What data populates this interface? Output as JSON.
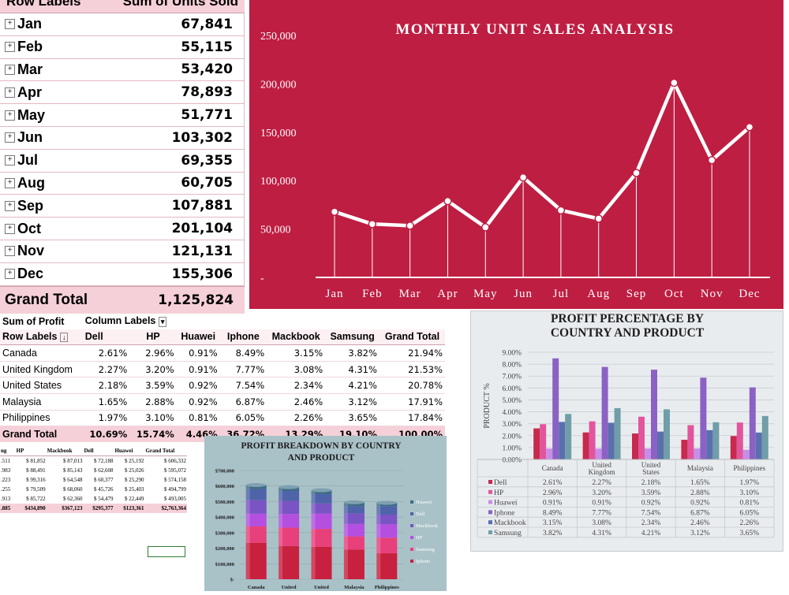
{
  "pivot_units": {
    "header_row_labels": "Row Labels",
    "header_value": "Sum of Units Sold",
    "rows": [
      {
        "label": "Jan",
        "value": "67,841"
      },
      {
        "label": "Feb",
        "value": "55,115"
      },
      {
        "label": "Mar",
        "value": "53,420"
      },
      {
        "label": "Apr",
        "value": "78,893"
      },
      {
        "label": "May",
        "value": "51,771"
      },
      {
        "label": "Jun",
        "value": "103,302"
      },
      {
        "label": "Jul",
        "value": "69,355"
      },
      {
        "label": "Aug",
        "value": "60,705"
      },
      {
        "label": "Sep",
        "value": "107,881"
      },
      {
        "label": "Oct",
        "value": "201,104"
      },
      {
        "label": "Nov",
        "value": "121,131"
      },
      {
        "label": "Dec",
        "value": "155,306"
      }
    ],
    "grand_total_label": "Grand Total",
    "grand_total_value": "1,125,824"
  },
  "pivot_profit_pct": {
    "value_field": "Sum of Profit",
    "column_labels": "Column Labels",
    "row_labels": "Row Labels",
    "columns": [
      "Dell",
      "HP",
      "Huawei",
      "Iphone",
      "Mackbook",
      "Samsung",
      "Grand Total"
    ],
    "rows": [
      {
        "label": "Canada",
        "values": [
          "2.61%",
          "2.96%",
          "0.91%",
          "8.49%",
          "3.15%",
          "3.82%",
          "21.94%"
        ]
      },
      {
        "label": "United Kingdom",
        "values": [
          "2.27%",
          "3.20%",
          "0.91%",
          "7.77%",
          "3.08%",
          "4.31%",
          "21.53%"
        ]
      },
      {
        "label": "United States",
        "values": [
          "2.18%",
          "3.59%",
          "0.92%",
          "7.54%",
          "2.34%",
          "4.21%",
          "20.78%"
        ]
      },
      {
        "label": "Malaysia",
        "values": [
          "1.65%",
          "2.88%",
          "0.92%",
          "6.87%",
          "2.46%",
          "3.12%",
          "17.91%"
        ]
      },
      {
        "label": "Philippines",
        "values": [
          "1.97%",
          "3.10%",
          "0.81%",
          "6.05%",
          "2.26%",
          "3.65%",
          "17.84%"
        ]
      }
    ],
    "grand_total_label": "Grand Total",
    "grand_total_values": [
      "10.69%",
      "15.74%",
      "4.46%",
      "36.72%",
      "13.29%",
      "19.10%",
      "100.00%"
    ]
  },
  "pivot_profit_abs": {
    "columns": [
      "ng",
      "HP",
      "Mackbook",
      "Dell",
      "Huawei",
      "Grand Total"
    ],
    "rows": [
      [
        ".511",
        "$ 81,852",
        "$ 87,013",
        "$ 72,188",
        "$ 25,192",
        "$ 606,332"
      ],
      [
        ".983",
        "$ 88,491",
        "$ 85,143",
        "$ 62,608",
        "$ 25,026",
        "$ 595,072"
      ],
      [
        ".223",
        "$ 99,316",
        "$ 64,548",
        "$ 60,377",
        "$ 25,290",
        "$ 574,158"
      ],
      [
        ".255",
        "$ 79,509",
        "$ 68,060",
        "$ 45,726",
        "$ 25,403",
        "$ 494,799"
      ],
      [
        ".913",
        "$ 85,722",
        "$ 62,360",
        "$ 54,479",
        "$ 22,449",
        "$ 493,005"
      ]
    ],
    "total": [
      ".885",
      "$434,890",
      "$367,123",
      "$295,377",
      "$123,361",
      "$2,763,364"
    ]
  },
  "chart_data": [
    {
      "type": "line",
      "title": "MONTHLY UNIT SALES ANALYSIS",
      "categories": [
        "Jan",
        "Feb",
        "Mar",
        "Apr",
        "May",
        "Jun",
        "Jul",
        "Aug",
        "Sep",
        "Oct",
        "Nov",
        "Dec"
      ],
      "values": [
        67841,
        55115,
        53420,
        78893,
        51771,
        103302,
        69355,
        60705,
        107881,
        201104,
        121131,
        155306
      ],
      "y_ticks": [
        "-",
        "50,000",
        "100,000",
        "150,000",
        "200,000",
        "250,000"
      ],
      "ylim": [
        0,
        250000
      ],
      "grid": false,
      "colors": {
        "background": "#be1e42",
        "line": "#ffffff"
      }
    },
    {
      "type": "bar",
      "title": "PROFIT PERCENTAGE BY COUNTRY AND PRODUCT",
      "ylabel": "PRODUCT %",
      "categories": [
        "Canada",
        "United Kingdom",
        "United States",
        "Malaysia",
        "Philippines"
      ],
      "y_ticks": [
        "0.00%",
        "1.00%",
        "2.00%",
        "3.00%",
        "4.00%",
        "5.00%",
        "6.00%",
        "7.00%",
        "8.00%",
        "9.00%"
      ],
      "ylim": [
        0,
        9
      ],
      "series": [
        {
          "name": "Dell",
          "values": [
            2.61,
            2.27,
            2.18,
            1.65,
            1.97
          ],
          "labels": [
            "2.61%",
            "2.27%",
            "2.18%",
            "1.65%",
            "1.97%"
          ],
          "color": "#c62a4c"
        },
        {
          "name": "HP",
          "values": [
            2.96,
            3.2,
            3.59,
            2.88,
            3.1
          ],
          "labels": [
            "2.96%",
            "3.20%",
            "3.59%",
            "2.88%",
            "3.10%"
          ],
          "color": "#e2559d"
        },
        {
          "name": "Huawei",
          "values": [
            0.91,
            0.91,
            0.92,
            0.92,
            0.81
          ],
          "labels": [
            "0.91%",
            "0.91%",
            "0.92%",
            "0.92%",
            "0.81%"
          ],
          "color": "#c78ee8"
        },
        {
          "name": "Iphone",
          "values": [
            8.49,
            7.77,
            7.54,
            6.87,
            6.05
          ],
          "labels": [
            "8.49%",
            "7.77%",
            "7.54%",
            "6.87%",
            "6.05%"
          ],
          "color": "#8b62c4"
        },
        {
          "name": "Mackbook",
          "values": [
            3.15,
            3.08,
            2.34,
            2.46,
            2.26
          ],
          "labels": [
            "3.15%",
            "3.08%",
            "2.34%",
            "2.46%",
            "2.26%"
          ],
          "color": "#5b6fae"
        },
        {
          "name": "Samsung",
          "values": [
            3.82,
            4.31,
            4.21,
            3.12,
            3.65
          ],
          "labels": [
            "3.82%",
            "4.31%",
            "4.21%",
            "3.12%",
            "3.65%"
          ],
          "color": "#6f9ea8"
        }
      ],
      "legend": "data-table"
    },
    {
      "type": "bar",
      "stacked": true,
      "title": "PROFIT BREAKDOWN BY COUNTRY AND PRODUCT",
      "categories": [
        "Canada",
        "United",
        "United",
        "Malaysia",
        "Philippines"
      ],
      "y_ticks": [
        "$-",
        "$100,000",
        "$200,000",
        "$300,000",
        "$400,000",
        "$500,000",
        "$600,000",
        "$700,000"
      ],
      "ylim": [
        0,
        700000
      ],
      "series": [
        {
          "name": "Iphone",
          "values": [
            235000,
            214000,
            208000,
            190000,
            167000
          ],
          "color": "#c8203f"
        },
        {
          "name": "Samsung",
          "values": [
            105000,
            118000,
            116000,
            86000,
            101000
          ],
          "color": "#e8407a"
        },
        {
          "name": "HP",
          "values": [
            82000,
            88000,
            99000,
            80000,
            86000
          ],
          "color": "#b44fe0"
        },
        {
          "name": "Mackbook",
          "values": [
            87000,
            85000,
            65000,
            68000,
            62000
          ],
          "color": "#7a54c4"
        },
        {
          "name": "Dell",
          "values": [
            72000,
            63000,
            60000,
            46000,
            54000
          ],
          "color": "#4f63a8"
        },
        {
          "name": "Huawei",
          "values": [
            25000,
            25000,
            25000,
            25000,
            22000
          ],
          "color": "#3e6c86"
        }
      ],
      "legend_order": [
        "Huawei",
        "Dell",
        "Mackbook",
        "HP",
        "Samsung",
        "Iphone"
      ],
      "legend": "right"
    }
  ]
}
